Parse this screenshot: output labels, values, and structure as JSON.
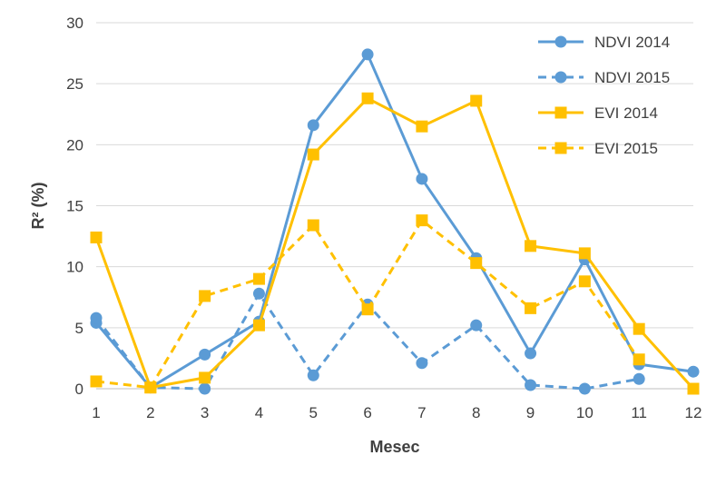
{
  "chart_data": {
    "type": "line",
    "xlabel": "Mesec",
    "ylabel": "R² (%)",
    "categories": [
      "1",
      "2",
      "3",
      "4",
      "5",
      "6",
      "7",
      "8",
      "9",
      "10",
      "11",
      "12"
    ],
    "ylim": [
      0,
      30
    ],
    "yticks": [
      "0",
      "5",
      "10",
      "15",
      "20",
      "25",
      "30"
    ],
    "grid": true,
    "legend_position": "top-right",
    "series": [
      {
        "name": "NDVI 2014",
        "color": "#5b9bd5",
        "dash": "solid",
        "marker": "circle",
        "values": [
          5.4,
          0.1,
          2.8,
          5.5,
          21.6,
          27.4,
          17.2,
          10.7,
          2.9,
          10.6,
          2.0,
          1.4
        ]
      },
      {
        "name": "NDVI 2015",
        "color": "#5b9bd5",
        "dash": "dashed",
        "marker": "circle",
        "values": [
          5.8,
          0.1,
          0.0,
          7.8,
          1.1,
          6.9,
          2.1,
          5.2,
          0.3,
          0.0,
          0.8,
          null
        ]
      },
      {
        "name": "EVI 2014",
        "color": "#ffc000",
        "dash": "solid",
        "marker": "square",
        "values": [
          12.4,
          0.1,
          0.9,
          5.2,
          19.2,
          23.8,
          21.5,
          23.6,
          11.7,
          11.1,
          4.9,
          0.0
        ]
      },
      {
        "name": "EVI 2015",
        "color": "#ffc000",
        "dash": "dashed",
        "marker": "square",
        "values": [
          0.6,
          0.1,
          7.6,
          9.0,
          13.4,
          6.5,
          13.8,
          10.3,
          6.6,
          8.8,
          2.4,
          null
        ]
      }
    ]
  }
}
